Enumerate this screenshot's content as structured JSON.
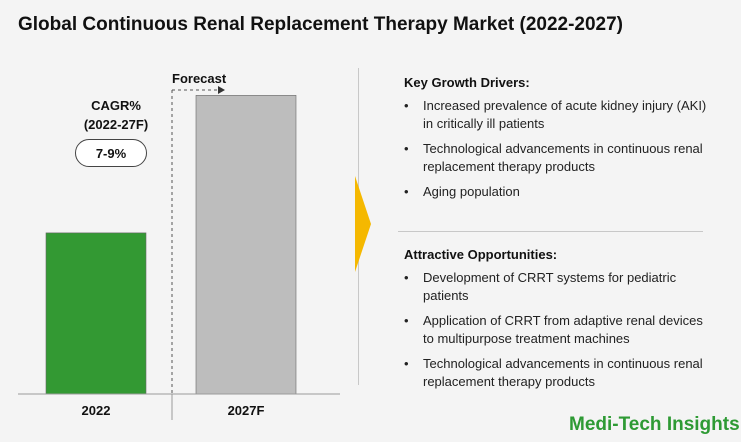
{
  "title": "Global Continuous Renal Replacement Therapy Market (2022-2027)",
  "chart_data": {
    "type": "bar",
    "categories": [
      "2022",
      "2027F"
    ],
    "values": [
      41,
      76
    ],
    "value_unit": "relative (no values printed)",
    "ylim": [
      0,
      85
    ],
    "colors": [
      "#339933",
      "#bdbdbd"
    ],
    "forecast_label": "Forecast",
    "forecast_start_category": "2027F",
    "cagr_title_line1": "CAGR%",
    "cagr_title_line2": "(2022-27F)",
    "cagr_value": "7-9%"
  },
  "drivers": {
    "heading": "Key Growth Drivers:",
    "items": [
      "Increased prevalence of acute kidney injury (AKI) in critically ill patients",
      "Technological advancements in continuous renal replacement therapy products",
      "Aging population"
    ]
  },
  "opportunities": {
    "heading": "Attractive Opportunities:",
    "items": [
      "Development of CRRT systems for pediatric patients",
      "Application of CRRT from adaptive renal devices to multipurpose treatment machines",
      "Technological advancements in continuous renal replacement therapy products"
    ]
  },
  "bullet_char": "•",
  "brand": "Medi-Tech Insights",
  "colors": {
    "accent": "#f5b800",
    "brand": "#2e9a34",
    "bar_actual": "#339933",
    "bar_forecast": "#bdbdbd"
  }
}
